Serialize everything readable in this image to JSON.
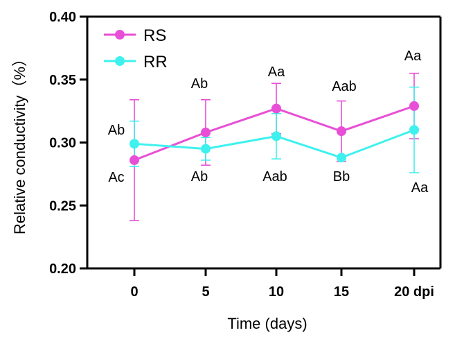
{
  "chart_data": {
    "type": "line",
    "title": "",
    "xlabel": "Time (days)",
    "ylabel": "Relative conductivity（%）",
    "categories": [
      "0",
      "5",
      "10",
      "15",
      "20 dpi"
    ],
    "ylim": [
      0.2,
      0.4
    ],
    "yticks": [
      "0.20",
      "0.25",
      "0.30",
      "0.35",
      "0.40"
    ],
    "ytick_values": [
      0.2,
      0.25,
      0.3,
      0.35,
      0.4
    ],
    "legend_position": "top-left",
    "series": [
      {
        "name": "RS",
        "color": "#e84fd6",
        "values": [
          0.286,
          0.308,
          0.327,
          0.309,
          0.329
        ],
        "errors": [
          0.048,
          0.026,
          0.02,
          0.024,
          0.026
        ],
        "labels": [
          "Ac",
          "Ab",
          "Aa",
          "Aab",
          "Aa"
        ],
        "label_side": [
          "below",
          "above",
          "above",
          "above",
          "above"
        ]
      },
      {
        "name": "RR",
        "color": "#3ff1ee",
        "values": [
          0.299,
          0.295,
          0.305,
          0.288,
          0.31
        ],
        "errors": [
          0.018,
          0.009,
          0.018,
          0.0,
          0.034
        ],
        "labels": [
          "Ab",
          "Ab",
          "Aab",
          "Bb",
          "Aa"
        ],
        "label_side": [
          "above",
          "below",
          "below",
          "below",
          "below"
        ]
      }
    ]
  }
}
